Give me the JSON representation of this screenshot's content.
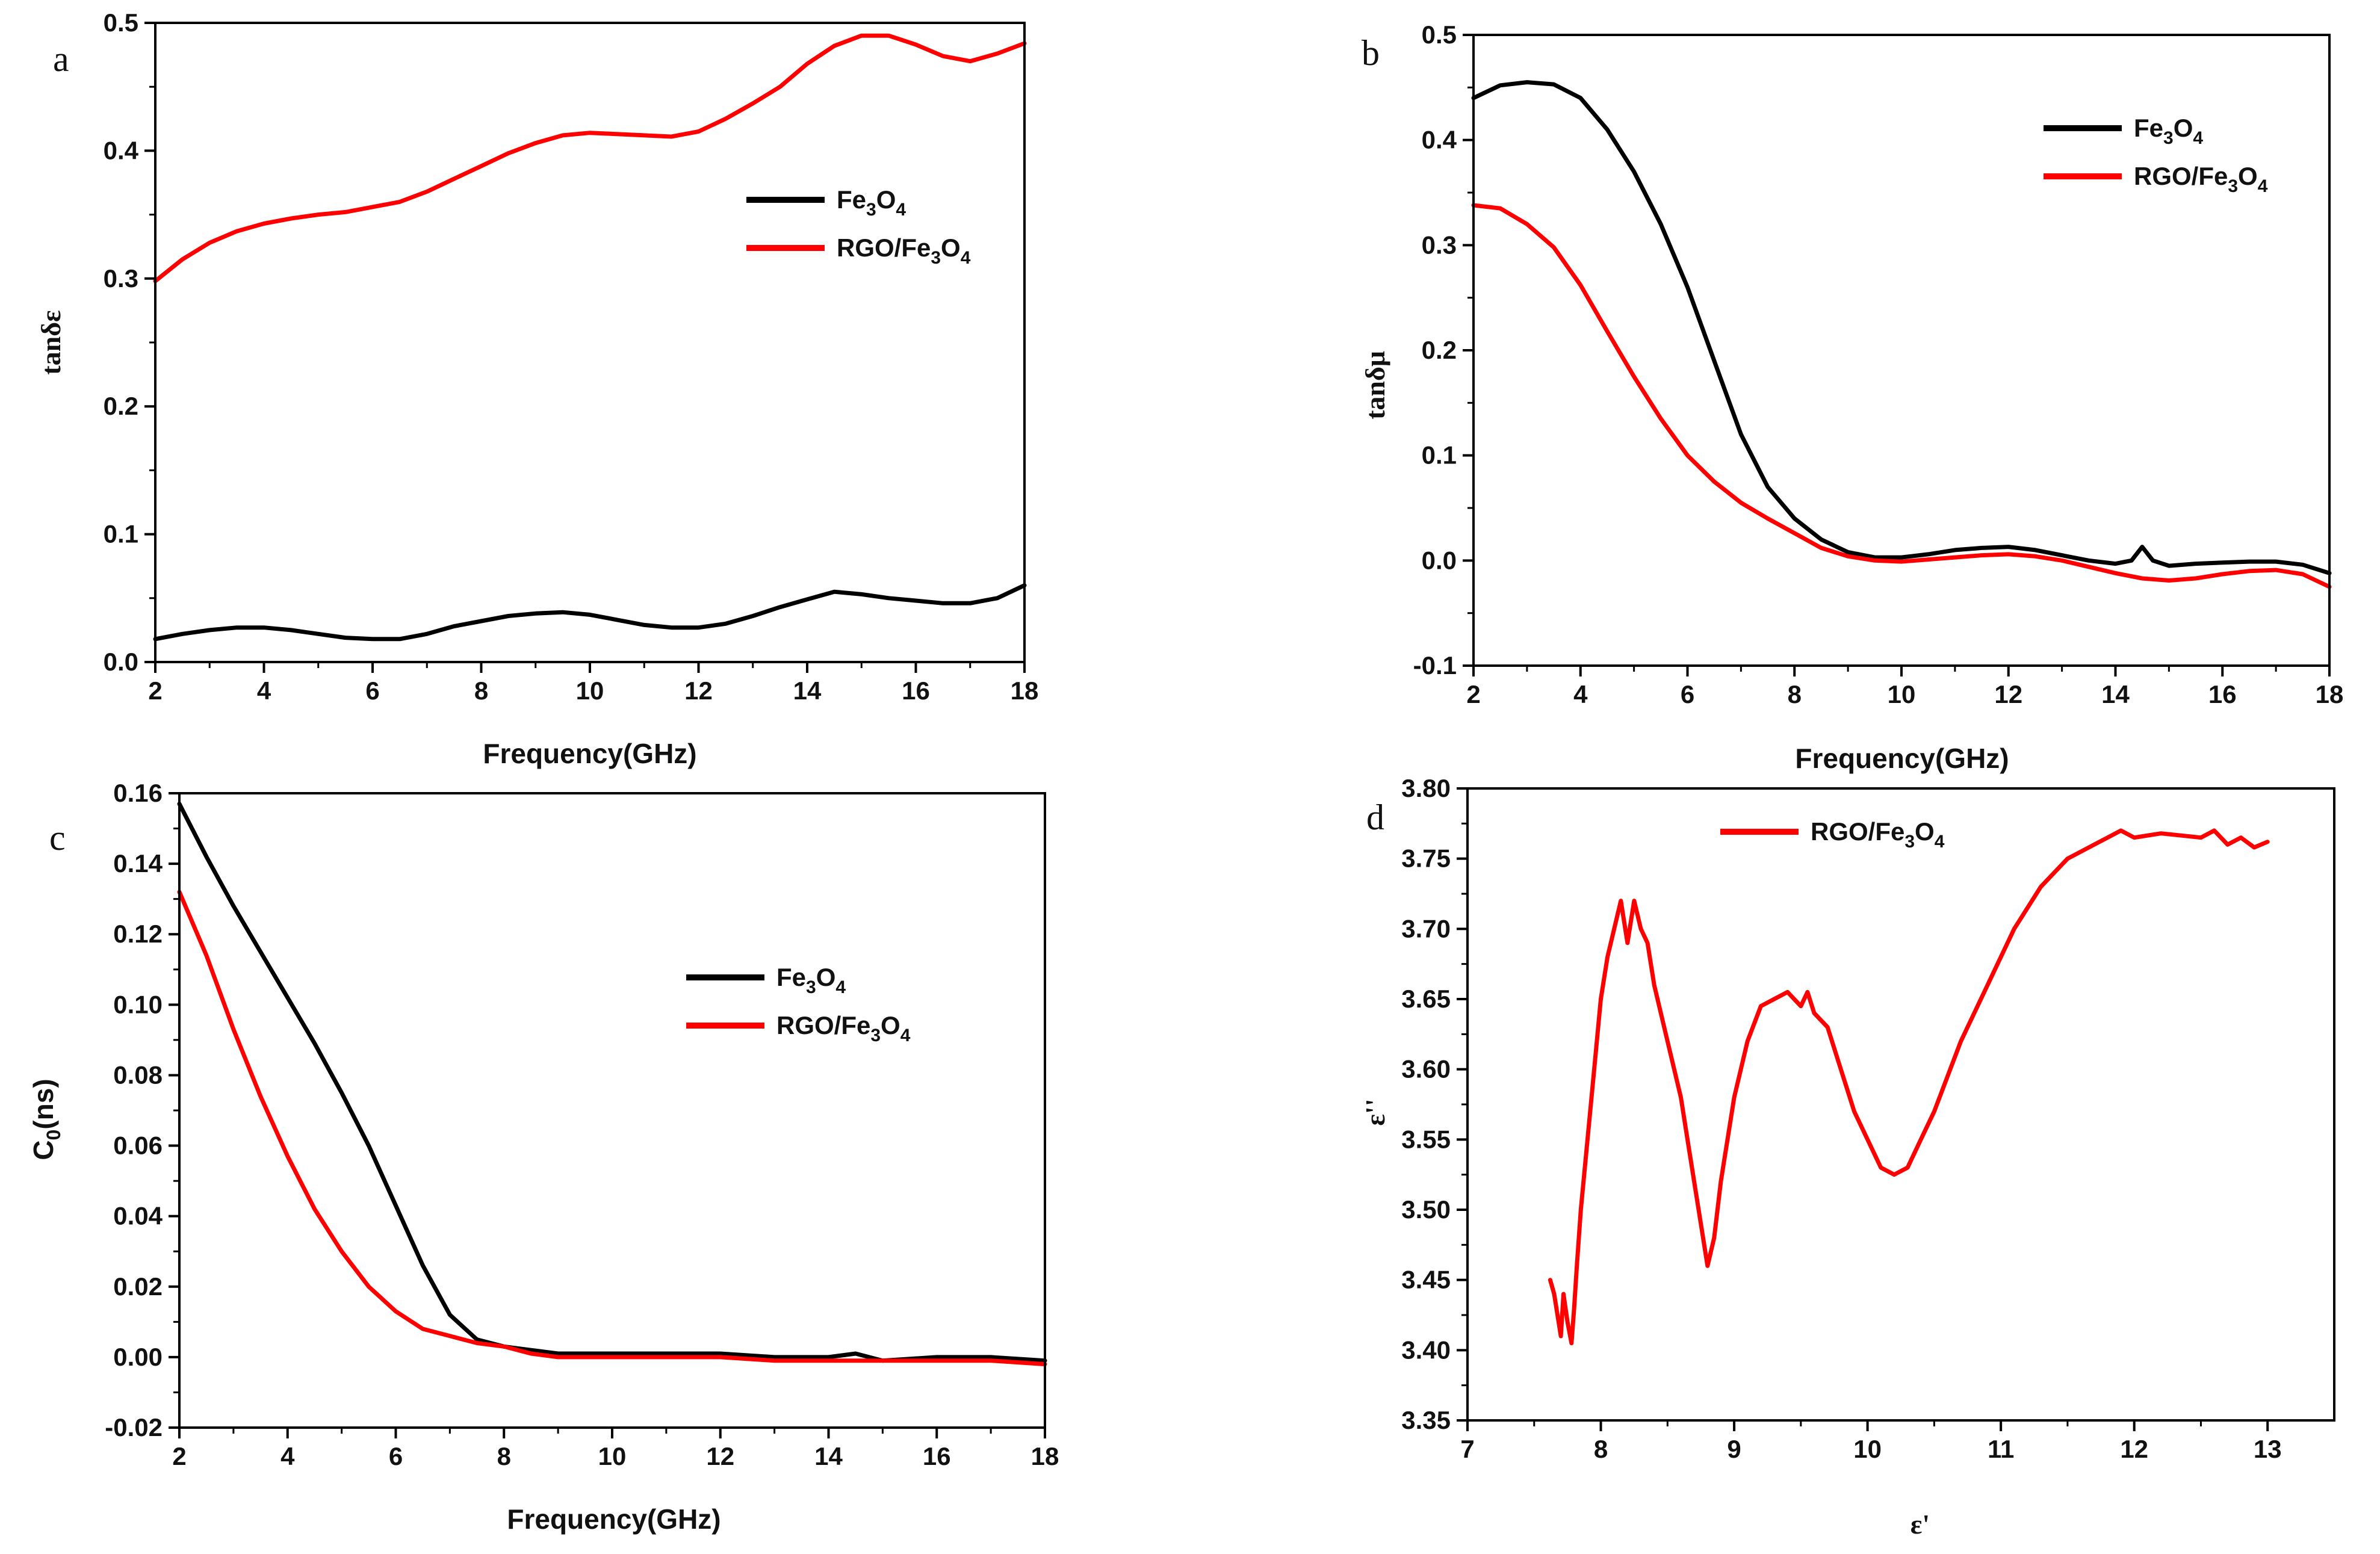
{
  "colors": {
    "fe3o4": "#000000",
    "rgo_fe3o4": "#ff0000",
    "axis": "#000000"
  },
  "chart_data": [
    {
      "type": "line",
      "panel_label": "a",
      "xlabel": "Frequency(GHz)",
      "ylabel": "tanδε",
      "xlim": [
        2,
        18
      ],
      "ylim": [
        0,
        0.5
      ],
      "xticks": [
        "2",
        "4",
        "6",
        "8",
        "10",
        "12",
        "14",
        "16",
        "18"
      ],
      "yticks": [
        "0.0",
        "0.1",
        "0.2",
        "0.3",
        "0.4",
        "0.5"
      ],
      "legend": {
        "position": "center-right",
        "entries": [
          {
            "base": "Fe",
            "s1": "3",
            "mid": "O",
            "s2": "4"
          },
          {
            "base": "RGO/Fe",
            "s1": "3",
            "mid": "O",
            "s2": "4"
          }
        ]
      },
      "series": [
        {
          "name": "Fe3O4",
          "color": "#000000",
          "x": [
            2,
            2.5,
            3,
            3.5,
            4,
            4.5,
            5,
            5.5,
            6,
            6.5,
            7,
            7.5,
            8,
            8.5,
            9,
            9.5,
            10,
            10.5,
            11,
            11.5,
            12,
            12.5,
            13,
            13.5,
            14,
            14.5,
            15,
            15.5,
            16,
            16.5,
            17,
            17.5,
            18
          ],
          "y": [
            0.018,
            0.022,
            0.025,
            0.027,
            0.027,
            0.025,
            0.022,
            0.019,
            0.018,
            0.018,
            0.022,
            0.028,
            0.032,
            0.036,
            0.038,
            0.039,
            0.037,
            0.033,
            0.029,
            0.027,
            0.027,
            0.03,
            0.036,
            0.043,
            0.049,
            0.055,
            0.053,
            0.05,
            0.048,
            0.046,
            0.046,
            0.05,
            0.06
          ]
        },
        {
          "name": "RGO/Fe3O4",
          "color": "#ff0000",
          "x": [
            2,
            2.5,
            3,
            3.5,
            4,
            4.5,
            5,
            5.5,
            6,
            6.5,
            7,
            7.5,
            8,
            8.5,
            9,
            9.5,
            10,
            10.5,
            11,
            11.5,
            12,
            12.5,
            13,
            13.5,
            14,
            14.5,
            15,
            15.5,
            16,
            16.5,
            17,
            17.5,
            18
          ],
          "y": [
            0.298,
            0.315,
            0.328,
            0.337,
            0.343,
            0.347,
            0.35,
            0.352,
            0.356,
            0.36,
            0.368,
            0.378,
            0.388,
            0.398,
            0.406,
            0.412,
            0.414,
            0.413,
            0.412,
            0.411,
            0.415,
            0.425,
            0.437,
            0.45,
            0.468,
            0.482,
            0.49,
            0.49,
            0.483,
            0.474,
            0.47,
            0.476,
            0.484
          ]
        }
      ]
    },
    {
      "type": "line",
      "panel_label": "b",
      "xlabel": "Frequency(GHz)",
      "ylabel": "tanδμ",
      "xlim": [
        2,
        18
      ],
      "ylim": [
        -0.1,
        0.5
      ],
      "xticks": [
        "2",
        "4",
        "6",
        "8",
        "10",
        "12",
        "14",
        "16",
        "18"
      ],
      "yticks": [
        "-0.1",
        "0.0",
        "0.1",
        "0.2",
        "0.3",
        "0.4",
        "0.5"
      ],
      "legend": {
        "position": "top-right",
        "entries": [
          {
            "base": "Fe",
            "s1": "3",
            "mid": "O",
            "s2": "4"
          },
          {
            "base": "RGO/Fe",
            "s1": "3",
            "mid": "O",
            "s2": "4"
          }
        ]
      },
      "series": [
        {
          "name": "Fe3O4",
          "color": "#000000",
          "x": [
            2,
            2.5,
            3,
            3.5,
            4,
            4.5,
            5,
            5.5,
            6,
            6.5,
            7,
            7.5,
            8,
            8.5,
            9,
            9.5,
            10,
            10.5,
            11,
            11.5,
            12,
            12.5,
            13,
            13.5,
            14,
            14.3,
            14.5,
            14.7,
            15,
            15.5,
            16,
            16.5,
            17,
            17.5,
            18
          ],
          "y": [
            0.44,
            0.452,
            0.455,
            0.453,
            0.44,
            0.41,
            0.37,
            0.32,
            0.26,
            0.19,
            0.12,
            0.07,
            0.04,
            0.02,
            0.008,
            0.003,
            0.003,
            0.006,
            0.01,
            0.012,
            0.013,
            0.01,
            0.005,
            0.0,
            -0.003,
            0.0,
            0.013,
            0.0,
            -0.005,
            -0.003,
            -0.002,
            -0.001,
            -0.001,
            -0.004,
            -0.012
          ]
        },
        {
          "name": "RGO/Fe3O4",
          "color": "#ff0000",
          "x": [
            2,
            2.5,
            3,
            3.5,
            4,
            4.5,
            5,
            5.5,
            6,
            6.5,
            7,
            7.5,
            8,
            8.5,
            9,
            9.5,
            10,
            10.5,
            11,
            11.5,
            12,
            12.5,
            13,
            13.5,
            14,
            14.5,
            15,
            15.5,
            16,
            16.5,
            17,
            17.5,
            18
          ],
          "y": [
            0.338,
            0.335,
            0.32,
            0.298,
            0.262,
            0.218,
            0.175,
            0.135,
            0.1,
            0.075,
            0.055,
            0.04,
            0.026,
            0.012,
            0.004,
            0.0,
            -0.001,
            0.001,
            0.003,
            0.005,
            0.006,
            0.004,
            0.0,
            -0.006,
            -0.012,
            -0.017,
            -0.019,
            -0.017,
            -0.013,
            -0.01,
            -0.009,
            -0.013,
            -0.025
          ]
        }
      ]
    },
    {
      "type": "line",
      "panel_label": "c",
      "xlabel": "Frequency(GHz)",
      "ylabel": "C0(ns)",
      "ylabel_base": "C",
      "ylabel_sub": "0",
      "ylabel_tail": "(ns)",
      "xlim": [
        2,
        18
      ],
      "ylim": [
        -0.02,
        0.16
      ],
      "xticks": [
        "2",
        "4",
        "6",
        "8",
        "10",
        "12",
        "14",
        "16",
        "18"
      ],
      "yticks": [
        "-0.02",
        "0.00",
        "0.02",
        "0.04",
        "0.06",
        "0.08",
        "0.10",
        "0.12",
        "0.14",
        "0.16"
      ],
      "legend": {
        "position": "center-right",
        "entries": [
          {
            "base": "Fe",
            "s1": "3",
            "mid": "O",
            "s2": "4"
          },
          {
            "base": "RGO/Fe",
            "s1": "3",
            "mid": "O",
            "s2": "4"
          }
        ]
      },
      "series": [
        {
          "name": "Fe3O4",
          "color": "#000000",
          "x": [
            2,
            2.5,
            3,
            3.5,
            4,
            4.5,
            5,
            5.5,
            6,
            6.5,
            7,
            7.5,
            8,
            8.5,
            9,
            9.5,
            10,
            11,
            12,
            13,
            14,
            14.5,
            15,
            16,
            17,
            18
          ],
          "y": [
            0.157,
            0.142,
            0.128,
            0.115,
            0.102,
            0.089,
            0.075,
            0.06,
            0.043,
            0.026,
            0.012,
            0.005,
            0.003,
            0.002,
            0.001,
            0.001,
            0.001,
            0.001,
            0.001,
            0.0,
            0.0,
            0.001,
            -0.001,
            0.0,
            0.0,
            -0.001
          ]
        },
        {
          "name": "RGO/Fe3O4",
          "color": "#ff0000",
          "x": [
            2,
            2.5,
            3,
            3.5,
            4,
            4.5,
            5,
            5.5,
            6,
            6.5,
            7,
            7.5,
            8,
            8.5,
            9,
            9.5,
            10,
            11,
            12,
            13,
            14,
            15,
            16,
            17,
            18
          ],
          "y": [
            0.132,
            0.114,
            0.093,
            0.074,
            0.057,
            0.042,
            0.03,
            0.02,
            0.013,
            0.008,
            0.006,
            0.004,
            0.003,
            0.001,
            0.0,
            0.0,
            0.0,
            0.0,
            0.0,
            -0.001,
            -0.001,
            -0.001,
            -0.001,
            -0.001,
            -0.002
          ]
        }
      ]
    },
    {
      "type": "line",
      "panel_label": "d",
      "xlabel": "ε'",
      "ylabel": "ε''",
      "xlim": [
        7,
        13.5
      ],
      "ylim": [
        3.35,
        3.8
      ],
      "xticks": [
        "7",
        "8",
        "9",
        "10",
        "11",
        "12",
        "13"
      ],
      "yticks": [
        "3.35",
        "3.40",
        "3.45",
        "3.50",
        "3.55",
        "3.60",
        "3.65",
        "3.70",
        "3.75",
        "3.80"
      ],
      "legend": {
        "position": "top-left",
        "entries": [
          {
            "base": "RGO/Fe",
            "s1": "3",
            "mid": "O",
            "s2": "4"
          }
        ]
      },
      "series": [
        {
          "name": "RGO/Fe3O4",
          "color": "#ff0000",
          "x": [
            7.62,
            7.65,
            7.7,
            7.72,
            7.75,
            7.78,
            7.8,
            7.82,
            7.85,
            7.9,
            7.95,
            8.0,
            8.05,
            8.1,
            8.15,
            8.2,
            8.25,
            8.3,
            8.35,
            8.4,
            8.5,
            8.6,
            8.65,
            8.7,
            8.75,
            8.8,
            8.85,
            8.9,
            8.95,
            9.0,
            9.1,
            9.2,
            9.3,
            9.4,
            9.5,
            9.55,
            9.6,
            9.7,
            9.8,
            9.9,
            10.0,
            10.1,
            10.2,
            10.3,
            10.4,
            10.5,
            10.7,
            10.9,
            11.1,
            11.3,
            11.5,
            11.7,
            11.8,
            11.9,
            12.0,
            12.2,
            12.4,
            12.5,
            12.6,
            12.7,
            12.8,
            12.9,
            13.0
          ],
          "y": [
            3.45,
            3.44,
            3.41,
            3.44,
            3.42,
            3.405,
            3.43,
            3.46,
            3.5,
            3.55,
            3.6,
            3.65,
            3.68,
            3.7,
            3.72,
            3.69,
            3.72,
            3.7,
            3.69,
            3.66,
            3.62,
            3.58,
            3.55,
            3.52,
            3.49,
            3.46,
            3.48,
            3.52,
            3.55,
            3.58,
            3.62,
            3.645,
            3.65,
            3.655,
            3.645,
            3.655,
            3.64,
            3.63,
            3.6,
            3.57,
            3.55,
            3.53,
            3.525,
            3.53,
            3.55,
            3.57,
            3.62,
            3.66,
            3.7,
            3.73,
            3.75,
            3.76,
            3.765,
            3.77,
            3.765,
            3.768,
            3.766,
            3.765,
            3.77,
            3.76,
            3.765,
            3.758,
            3.762
          ]
        }
      ]
    }
  ]
}
